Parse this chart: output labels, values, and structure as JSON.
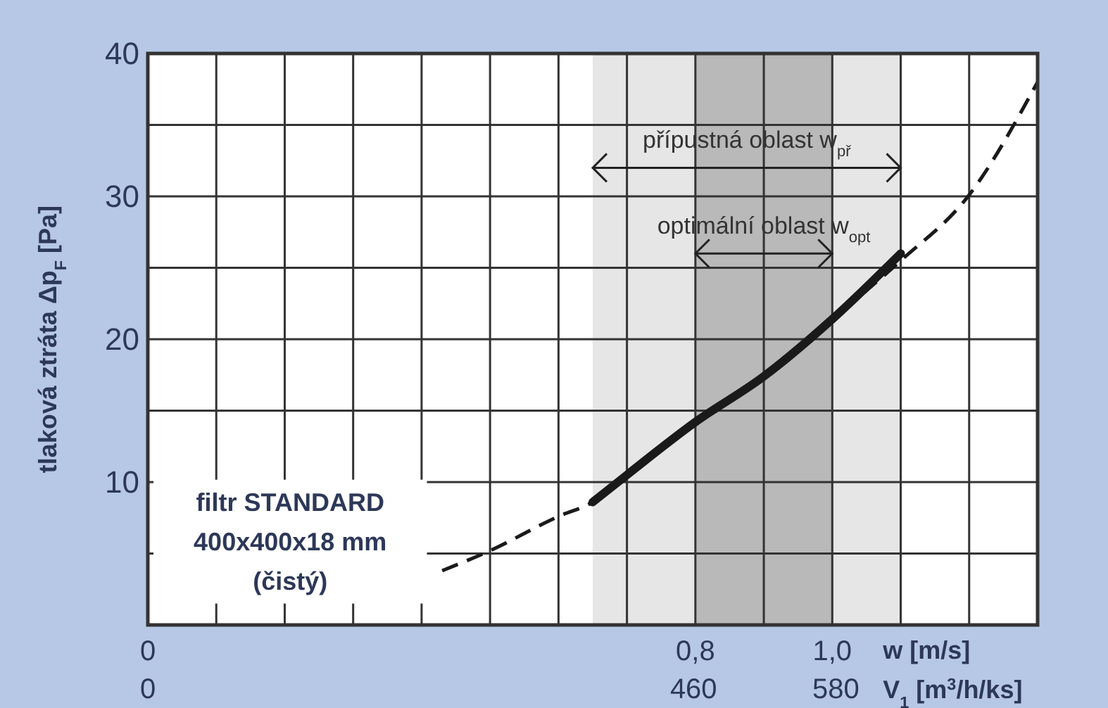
{
  "chart_data": {
    "type": "line",
    "ylabel": "tlaková ztráta Δp$_{F}$ [Pa]",
    "xlabel": "w [m/s]",
    "x2label": "V$_{1}$ [m$^{3}$/h/ks]",
    "series": [
      {
        "color": "#1a1a1a",
        "line_style": "dashed",
        "x": [
          0.43,
          0.5,
          0.6,
          0.65,
          0.7,
          0.8,
          0.9,
          1.0,
          1.1,
          1.2,
          1.3
        ],
        "values": [
          3.8,
          5.2,
          7.6,
          8.6,
          10.5,
          14.2,
          17.4,
          21.4,
          25.5,
          30.1,
          38
        ]
      },
      {
        "color": "#1a1a1a",
        "line_style": "solid",
        "x": [
          0.65,
          0.7,
          0.8,
          0.9,
          1.0,
          1.1
        ],
        "values": [
          8.6,
          10.5,
          14.2,
          17.4,
          21.4,
          26
        ]
      }
    ],
    "xlim": [
      0,
      1.3
    ],
    "xticks": [
      0,
      {
        "value": 0.1,
        "label": null
      },
      {
        "value": 0.2,
        "label": null
      },
      {
        "value": 0.3,
        "label": null
      },
      {
        "value": 0.4,
        "label": null
      },
      {
        "value": 0.5,
        "label": null
      },
      {
        "value": 0.6,
        "label": null
      },
      {
        "value": 0.7,
        "label": null
      },
      {
        "value": 0.8,
        "label": "0,8"
      },
      {
        "value": 0.9,
        "label": null
      },
      {
        "value": 1.0,
        "label": "1,0"
      },
      {
        "value": 1.1,
        "label": null
      },
      {
        "value": 1.2,
        "label": null
      },
      {
        "value": 1.3,
        "label": null
      }
    ],
    "x2lim": [
      0,
      750
    ],
    "x2ticks": [
      0,
      460,
      580
    ],
    "ylim": [
      0,
      40
    ],
    "yticks": [
      {
        "value": 0,
        "label": null
      },
      {
        "value": 5,
        "label": null
      },
      10,
      {
        "value": 15,
        "label": null
      },
      20,
      {
        "value": 25,
        "label": null
      },
      30,
      {
        "value": 35,
        "label": null
      },
      40
    ],
    "grid": true,
    "bands": [
      {
        "axis": "x",
        "from": 0.65,
        "to": 1.1,
        "label": "přípustná oblast w$_{př}$",
        "color": "#e6e6e6"
      },
      {
        "axis": "x",
        "from": 0.8,
        "to": 1.0,
        "label": "optimální oblast w$_{opt}$",
        "color": "#b9b9b9"
      }
    ],
    "annotations": [
      "filtr STANDARD",
      "400x400x18 mm",
      "(čistý)"
    ]
  }
}
